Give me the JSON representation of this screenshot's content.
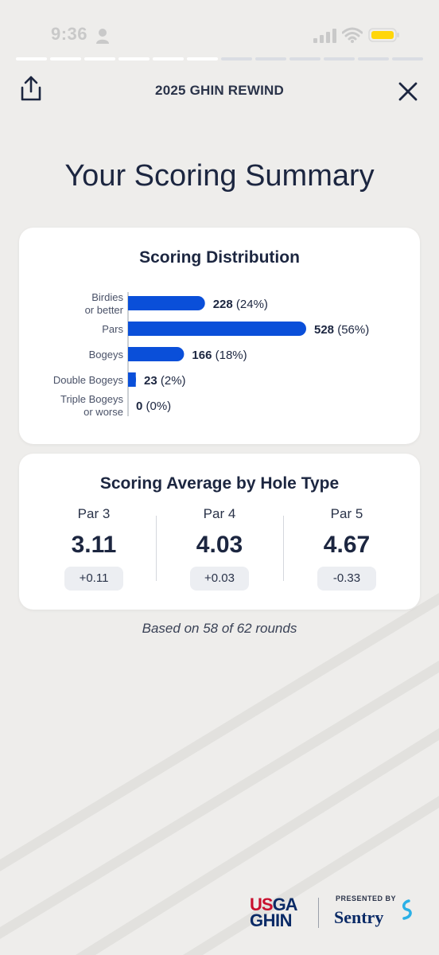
{
  "status_bar": {
    "time": "9:36"
  },
  "progress": {
    "total_segments": 12,
    "completed_segments": 6
  },
  "header": {
    "title": "2025 GHIN REWIND"
  },
  "page": {
    "title": "Your Scoring Summary"
  },
  "distribution": {
    "title": "Scoring Distribution",
    "bar_color": "#0a4fd9",
    "rows": [
      {
        "label_lines": [
          "Birdies",
          "or better"
        ],
        "count": "228",
        "pct": "(24%)"
      },
      {
        "label_lines": [
          "Pars"
        ],
        "count": "528",
        "pct": "(56%)"
      },
      {
        "label_lines": [
          "Bogeys"
        ],
        "count": "166",
        "pct": "(18%)"
      },
      {
        "label_lines": [
          "Double Bogeys"
        ],
        "count": "23",
        "pct": "(2%)"
      },
      {
        "label_lines": [
          "Triple Bogeys",
          "or worse"
        ],
        "count": "0",
        "pct": "(0%)"
      }
    ]
  },
  "chart_data": {
    "type": "bar",
    "title": "Scoring Distribution",
    "orientation": "horizontal",
    "categories": [
      "Birdies or better",
      "Pars",
      "Bogeys",
      "Double Bogeys",
      "Triple Bogeys or worse"
    ],
    "values": [
      228,
      528,
      166,
      23,
      0
    ],
    "percentages": [
      24,
      56,
      18,
      2,
      0
    ],
    "grid": false,
    "legend": "none"
  },
  "averages": {
    "title": "Scoring Average by Hole Type",
    "columns": [
      {
        "label": "Par 3",
        "value": "3.11",
        "diff": "+0.11"
      },
      {
        "label": "Par 4",
        "value": "4.03",
        "diff": "+0.03"
      },
      {
        "label": "Par 5",
        "value": "4.67",
        "diff": "-0.33"
      }
    ]
  },
  "footnote": "Based on 58 of 62 rounds",
  "footer": {
    "usga_us": "US",
    "usga_ga": "GA",
    "ghin": "GHIN",
    "presented_by": "PRESENTED BY",
    "sponsor": "Sentry"
  },
  "icons": {
    "share": "share-icon",
    "close": "close-icon",
    "person": "person-icon",
    "signal": "signal-icon",
    "wifi": "wifi-icon",
    "battery": "battery-icon"
  },
  "colors": {
    "background": "#eeedeb",
    "navy": "#1c2640",
    "accent_blue": "#0a4fd9",
    "battery_yellow": "#ffd60a",
    "usga_red": "#c8102e"
  }
}
